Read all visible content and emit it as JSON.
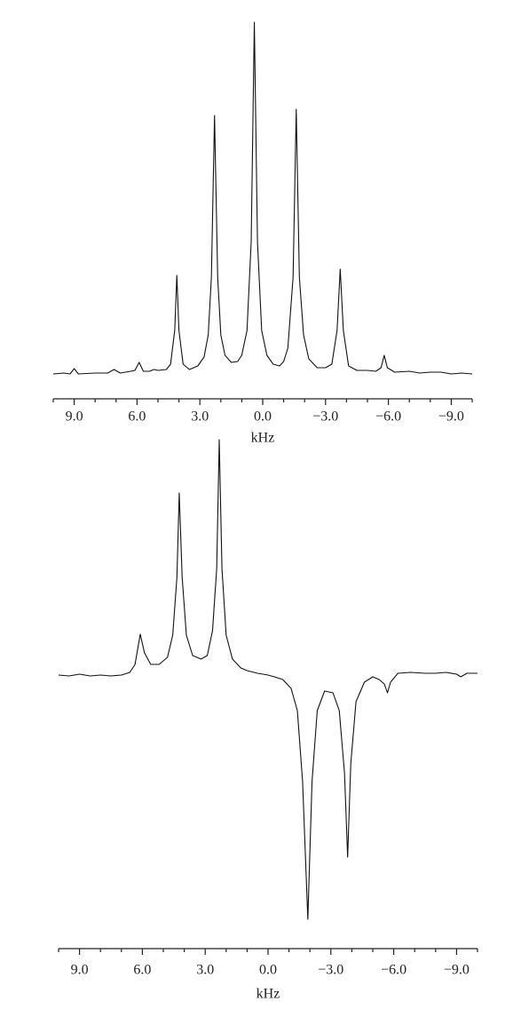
{
  "chart_data": [
    {
      "type": "line",
      "xlabel": "kHz",
      "color": "#111111",
      "xlim": [
        10,
        -10
      ],
      "ylim": [
        -20,
        400
      ],
      "xticks": [
        {
          "value": 9,
          "label": "9.0"
        },
        {
          "value": 6,
          "label": "6.0"
        },
        {
          "value": 3,
          "label": "3.0"
        },
        {
          "value": 0,
          "label": "0.0"
        },
        {
          "value": -3,
          "label": "−3.0"
        },
        {
          "value": -6,
          "label": "−6.0"
        },
        {
          "value": -9,
          "label": "−9.0"
        }
      ],
      "xminor_ticks": [
        10,
        8,
        7,
        5,
        4,
        2,
        1,
        -1,
        -2,
        -4,
        -5,
        -7,
        -8,
        -10
      ],
      "x": [
        10.0,
        9.5,
        9.2,
        9.0,
        8.8,
        8.0,
        7.4,
        7.1,
        6.8,
        6.3,
        6.1,
        5.9,
        5.7,
        5.4,
        5.2,
        5.0,
        4.6,
        4.4,
        4.2,
        4.1,
        4.0,
        3.8,
        3.5,
        3.1,
        2.8,
        2.6,
        2.45,
        2.3,
        2.15,
        2.0,
        1.8,
        1.5,
        1.2,
        1.0,
        0.75,
        0.55,
        0.4,
        0.25,
        0.05,
        -0.2,
        -0.5,
        -0.8,
        -1.0,
        -1.2,
        -1.45,
        -1.6,
        -1.75,
        -1.95,
        -2.2,
        -2.6,
        -3.0,
        -3.3,
        -3.55,
        -3.7,
        -3.85,
        -4.1,
        -4.5,
        -5.0,
        -5.4,
        -5.65,
        -5.8,
        -5.95,
        -6.3,
        -7.0,
        -7.5,
        -8.0,
        -8.5,
        -9.0,
        -9.5,
        -10.0
      ],
      "values": [
        1,
        2,
        1,
        7,
        1,
        2,
        2,
        6,
        2,
        4,
        5,
        14,
        4,
        4,
        6,
        5,
        6,
        12,
        50,
        112,
        50,
        12,
        6,
        10,
        20,
        45,
        110,
        292,
        110,
        45,
        22,
        14,
        15,
        22,
        50,
        150,
        397,
        150,
        50,
        22,
        12,
        10,
        15,
        30,
        110,
        299,
        110,
        45,
        18,
        8,
        8,
        12,
        50,
        119,
        50,
        10,
        5,
        5,
        4,
        8,
        22,
        8,
        3,
        4,
        2,
        3,
        3,
        1,
        2,
        1
      ]
    },
    {
      "type": "line",
      "xlabel": "kHz",
      "color": "#111111",
      "xlim": [
        10,
        -10
      ],
      "ylim": [
        -290,
        280
      ],
      "xticks": [
        {
          "value": 9,
          "label": "9.0"
        },
        {
          "value": 6,
          "label": "6.0"
        },
        {
          "value": 3,
          "label": "3.0"
        },
        {
          "value": 0,
          "label": "0.0"
        },
        {
          "value": -3,
          "label": "−3.0"
        },
        {
          "value": -6,
          "label": "−6.0"
        },
        {
          "value": -9,
          "label": "−9.0"
        }
      ],
      "xminor_ticks": [
        10,
        8,
        7,
        5,
        4,
        2,
        1,
        -1,
        -2,
        -4,
        -5,
        -7,
        -8,
        -10
      ],
      "x": [
        10.0,
        9.5,
        9.0,
        8.5,
        8.0,
        7.5,
        7.0,
        6.6,
        6.35,
        6.1,
        5.9,
        5.6,
        5.2,
        4.8,
        4.55,
        4.35,
        4.24,
        4.1,
        3.9,
        3.6,
        3.2,
        2.9,
        2.65,
        2.45,
        2.33,
        2.2,
        2.0,
        1.7,
        1.3,
        1.0,
        0.5,
        0.0,
        -0.3,
        -0.7,
        -1.1,
        -1.4,
        -1.65,
        -1.9,
        -2.1,
        -2.35,
        -2.7,
        -3.1,
        -3.4,
        -3.65,
        -3.8,
        -3.95,
        -4.2,
        -4.6,
        -5.0,
        -5.3,
        -5.55,
        -5.7,
        -5.85,
        -6.2,
        -6.8,
        -7.5,
        -8.0,
        -8.5,
        -9.0,
        -9.2,
        -9.5,
        -10.0
      ],
      "values": [
        0,
        -1,
        1,
        -1,
        0,
        -1,
        0,
        3,
        12,
        46,
        25,
        12,
        12,
        20,
        45,
        110,
        205,
        110,
        45,
        22,
        18,
        22,
        50,
        120,
        265,
        120,
        45,
        18,
        8,
        5,
        2,
        0,
        -2,
        -5,
        -15,
        -40,
        -120,
        -275,
        -120,
        -40,
        -18,
        -20,
        -40,
        -110,
        -205,
        -100,
        -30,
        -8,
        -2,
        -5,
        -10,
        -20,
        -8,
        2,
        3,
        2,
        2,
        3,
        1,
        -2,
        2,
        2
      ]
    }
  ]
}
